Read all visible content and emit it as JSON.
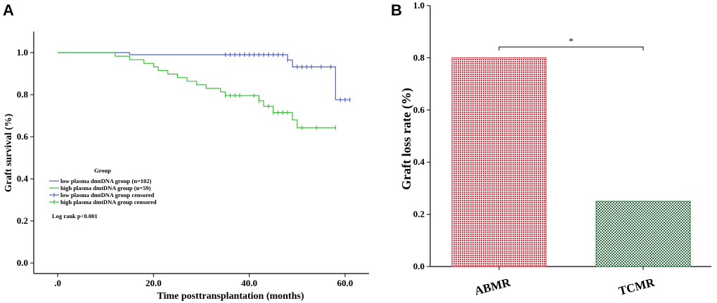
{
  "chart_data": [
    {
      "panel": "A",
      "type": "line",
      "subtype": "kaplan-meier",
      "xlabel": "Time posttransplantation (months)",
      "ylabel": "Graft survival (%)",
      "xlim": [
        -5,
        65
      ],
      "ylim": [
        -0.05,
        1.1
      ],
      "x_ticks": [
        0,
        20,
        40,
        60
      ],
      "x_tick_labels": [
        ".0",
        "20.0",
        "40.0",
        "60.0"
      ],
      "y_ticks": [
        0,
        0.2,
        0.4,
        0.6,
        0.8,
        1.0
      ],
      "y_tick_labels": [
        "0.0",
        "0.2",
        "0.4",
        "0.6",
        "0.8",
        "1.0"
      ],
      "legend_title": "Group",
      "legend_position": "left-middle",
      "annotation": "Log rank p<0.001",
      "series": [
        {
          "name": "low plasma dmtDNA group (n=102)",
          "color": "#4a62c9",
          "steps": [
            [
              0,
              1.0
            ],
            [
              15,
              0.99
            ],
            [
              48,
              0.965
            ],
            [
              49,
              0.932
            ],
            [
              58,
              0.776
            ],
            [
              61,
              0.776
            ]
          ],
          "censored_label": "low plasma dmtDNA group censored",
          "censored": [
            [
              35,
              0.99
            ],
            [
              36,
              0.99
            ],
            [
              37,
              0.99
            ],
            [
              38,
              0.99
            ],
            [
              39,
              0.99
            ],
            [
              40,
              0.99
            ],
            [
              41,
              0.99
            ],
            [
              42,
              0.99
            ],
            [
              43,
              0.99
            ],
            [
              44,
              0.99
            ],
            [
              45,
              0.99
            ],
            [
              46,
              0.99
            ],
            [
              47,
              0.99
            ],
            [
              48,
              0.965
            ],
            [
              50,
              0.932
            ],
            [
              51,
              0.932
            ],
            [
              52,
              0.932
            ],
            [
              53,
              0.932
            ],
            [
              55,
              0.932
            ],
            [
              57,
              0.932
            ],
            [
              59,
              0.776
            ],
            [
              60,
              0.776
            ],
            [
              61,
              0.776
            ]
          ]
        },
        {
          "name": "high plasma dmtDNA group (n=59)",
          "color": "#3dbb3d",
          "steps": [
            [
              0,
              1.0
            ],
            [
              12,
              0.983
            ],
            [
              15,
              0.966
            ],
            [
              18,
              0.949
            ],
            [
              20,
              0.932
            ],
            [
              21,
              0.915
            ],
            [
              23,
              0.898
            ],
            [
              25,
              0.881
            ],
            [
              27,
              0.864
            ],
            [
              29,
              0.847
            ],
            [
              31,
              0.83
            ],
            [
              34,
              0.813
            ],
            [
              35,
              0.796
            ],
            [
              42,
              0.771
            ],
            [
              43,
              0.745
            ],
            [
              45,
              0.715
            ],
            [
              49,
              0.68
            ],
            [
              50,
              0.643
            ],
            [
              58,
              0.643
            ]
          ],
          "censored_label": "high plasma dmtDNA group censored",
          "censored": [
            [
              35,
              0.796
            ],
            [
              36,
              0.796
            ],
            [
              37,
              0.796
            ],
            [
              38,
              0.796
            ],
            [
              41,
              0.796
            ],
            [
              42,
              0.771
            ],
            [
              44,
              0.745
            ],
            [
              45,
              0.715
            ],
            [
              46,
              0.715
            ],
            [
              47,
              0.715
            ],
            [
              48,
              0.715
            ],
            [
              51,
              0.643
            ],
            [
              54,
              0.643
            ],
            [
              58,
              0.643
            ]
          ]
        }
      ]
    },
    {
      "panel": "B",
      "type": "bar",
      "categories": [
        "ABMR",
        "TCMR"
      ],
      "values": [
        0.8,
        0.25
      ],
      "ylabel": "Graft loss rate (%)",
      "ylim": [
        0,
        1.0
      ],
      "y_ticks": [
        0,
        0.2,
        0.4,
        0.6,
        0.8,
        1.0
      ],
      "y_tick_labels": [
        "0.0",
        "0.2",
        "0.4",
        "0.6",
        "0.8",
        "1.0"
      ],
      "bar_colors": [
        "#e0323f",
        "#2e7040"
      ],
      "significance": {
        "label": "*",
        "between": [
          "ABMR",
          "TCMR"
        ]
      }
    }
  ]
}
